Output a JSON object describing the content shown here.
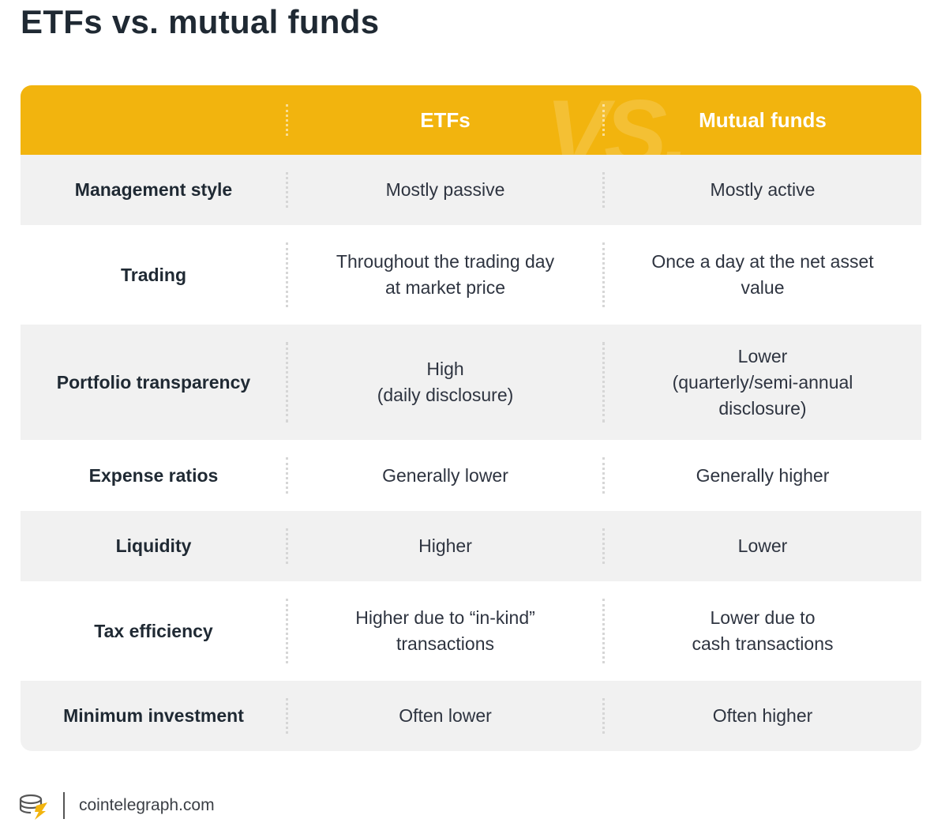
{
  "title": "ETFs vs. mutual funds",
  "header": {
    "col1": "",
    "col2": "ETFs",
    "col3": "Mutual funds",
    "watermark": "VS."
  },
  "rows": [
    {
      "label": "Management style",
      "etf": "Mostly passive",
      "mutual": "Mostly active"
    },
    {
      "label": "Trading",
      "etf": "Throughout the trading day\nat market price",
      "mutual": "Once a day at the net asset\nvalue"
    },
    {
      "label": "Portfolio transparency",
      "etf": "High\n(daily disclosure)",
      "mutual": "Lower\n(quarterly/semi-annual\ndisclosure)"
    },
    {
      "label": "Expense ratios",
      "etf": "Generally lower",
      "mutual": "Generally higher"
    },
    {
      "label": "Liquidity",
      "etf": "Higher",
      "mutual": "Lower"
    },
    {
      "label": "Tax efficiency",
      "etf": "Higher due to “in-kind”\ntransactions",
      "mutual": "Lower due to\ncash transactions"
    },
    {
      "label": "Minimum investment",
      "etf": "Often lower",
      "mutual": "Often higher"
    }
  ],
  "footer": {
    "source": "cointelegraph.com",
    "logo_icon": "cointelegraph-logo-icon"
  },
  "colors": {
    "header_bg": "#f2b40e",
    "alt_row_bg": "#f1f1f1",
    "title_text": "#1f2933"
  }
}
